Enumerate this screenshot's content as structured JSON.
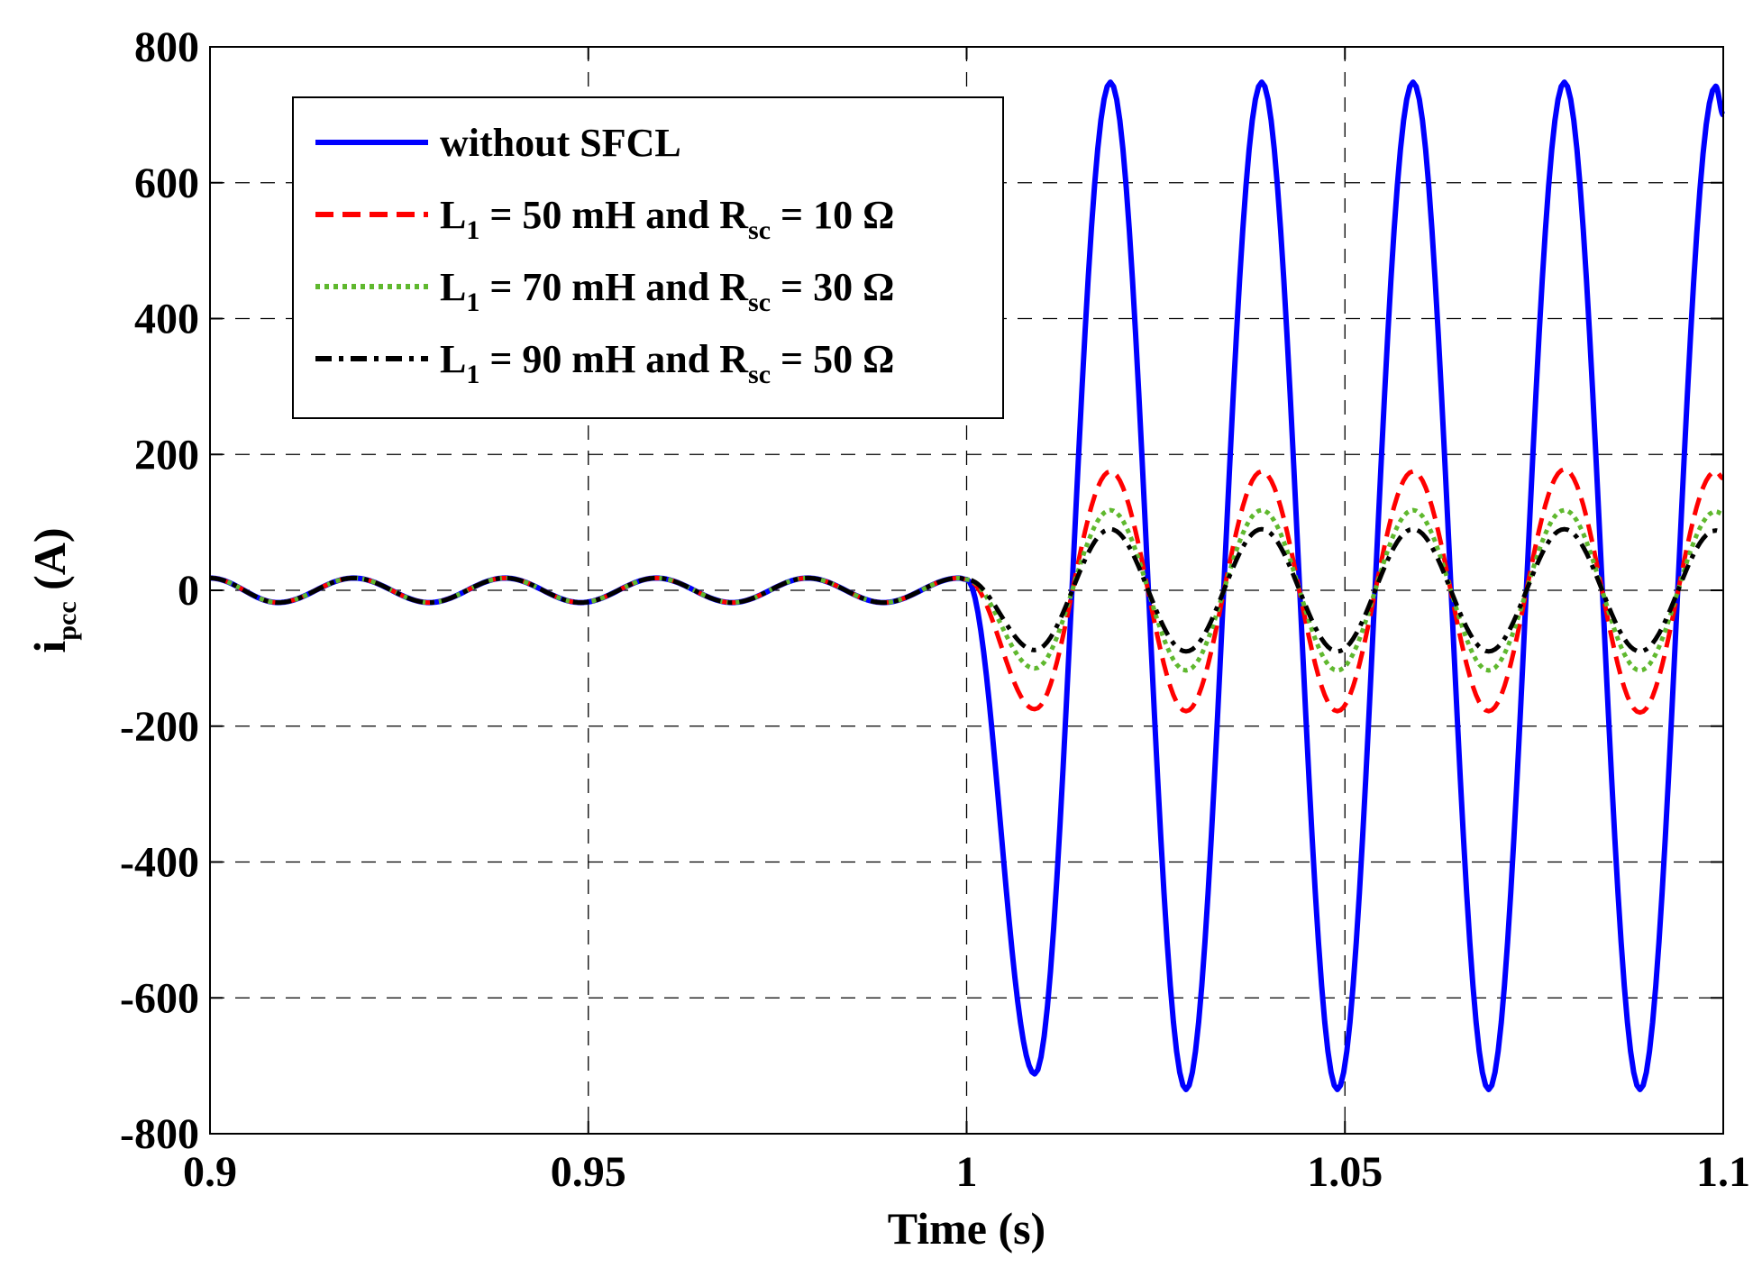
{
  "chart_data": {
    "type": "line",
    "title": "",
    "xlabel": "Time (s)",
    "ylabel": {
      "main": "i",
      "sub": "pcc",
      "unit": " (A)"
    },
    "xlim": [
      0.9,
      1.1
    ],
    "ylim": [
      -800,
      800
    ],
    "xticks": [
      0.9,
      0.95,
      1.0,
      1.05,
      1.1
    ],
    "xtick_labels": [
      "0.9",
      "0.95",
      "1",
      "1.05",
      "1.1"
    ],
    "yticks": [
      -800,
      -600,
      -400,
      -200,
      0,
      200,
      400,
      600,
      800
    ],
    "ytick_labels": [
      "-800",
      "-600",
      "-400",
      "-200",
      "0",
      "200",
      "400",
      "600",
      "800"
    ],
    "grid": true,
    "legend_position": "top-left",
    "series": [
      {
        "name": "without SFCL",
        "label_parts": [
          {
            "t": "without SFCL"
          }
        ],
        "color": "#0000ff",
        "style": "solid",
        "x": [
          0.9,
          0.909,
          0.919,
          0.929,
          0.939,
          0.949,
          0.959,
          0.969,
          0.979,
          0.989,
          0.999,
          1.0,
          1.009,
          1.019,
          1.029,
          1.039,
          1.049,
          1.059,
          1.069,
          1.079,
          1.089,
          1.099,
          1.1
        ],
        "y": [
          18,
          -18,
          18,
          -18,
          18,
          -18,
          18,
          -18,
          18,
          -18,
          18,
          16,
          -712,
          748,
          -735,
          748,
          -735,
          748,
          -735,
          748,
          -735,
          742,
          700
        ]
      },
      {
        "name": "L1 = 50 mH and Rsc = 10 Ω",
        "label_parts": [
          {
            "t": "L"
          },
          {
            "t": "1",
            "sub": true
          },
          {
            "t": " = 50 mH and R"
          },
          {
            "t": "sc",
            "sub": true
          },
          {
            "t": " = 10 Ω"
          }
        ],
        "color": "#ff0000",
        "style": "dashed",
        "x": [
          0.9,
          0.909,
          0.919,
          0.929,
          0.939,
          0.949,
          0.959,
          0.969,
          0.979,
          0.989,
          0.999,
          1.0,
          1.009,
          1.019,
          1.029,
          1.039,
          1.049,
          1.059,
          1.069,
          1.079,
          1.089,
          1.099,
          1.1
        ],
        "y": [
          18,
          -18,
          18,
          -18,
          18,
          -18,
          18,
          -18,
          18,
          -18,
          18,
          16,
          -175,
          175,
          -178,
          175,
          -178,
          175,
          -178,
          178,
          -180,
          175,
          165
        ]
      },
      {
        "name": "L1 = 70 mH and Rsc = 30 Ω",
        "label_parts": [
          {
            "t": "L"
          },
          {
            "t": "1",
            "sub": true
          },
          {
            "t": " = 70 mH and R"
          },
          {
            "t": "sc",
            "sub": true
          },
          {
            "t": " = 30 Ω"
          }
        ],
        "color": "#5fb82e",
        "style": "dotted",
        "x": [
          0.9,
          0.909,
          0.919,
          0.929,
          0.939,
          0.949,
          0.959,
          0.969,
          0.979,
          0.989,
          0.999,
          1.0,
          1.009,
          1.019,
          1.029,
          1.039,
          1.049,
          1.059,
          1.069,
          1.079,
          1.089,
          1.099,
          1.1
        ],
        "y": [
          18,
          -18,
          18,
          -18,
          18,
          -18,
          18,
          -18,
          18,
          -18,
          18,
          16,
          -115,
          118,
          -118,
          118,
          -118,
          118,
          -118,
          118,
          -118,
          116,
          112
        ]
      },
      {
        "name": "L1 = 90 mH and Rsc = 50 Ω",
        "label_parts": [
          {
            "t": "L"
          },
          {
            "t": "1",
            "sub": true
          },
          {
            "t": " = 90 mH and R"
          },
          {
            "t": "sc",
            "sub": true
          },
          {
            "t": " = 50 Ω"
          }
        ],
        "color": "#000000",
        "style": "dashdot",
        "x": [
          0.9,
          0.909,
          0.919,
          0.929,
          0.939,
          0.949,
          0.959,
          0.969,
          0.979,
          0.989,
          0.999,
          1.0,
          1.009,
          1.019,
          1.029,
          1.039,
          1.049,
          1.059,
          1.069,
          1.079,
          1.089,
          1.099,
          1.1
        ],
        "y": [
          18,
          -18,
          18,
          -18,
          18,
          -18,
          18,
          -18,
          18,
          -18,
          18,
          16,
          -88,
          90,
          -90,
          90,
          -90,
          90,
          -90,
          90,
          -90,
          88,
          85
        ]
      }
    ]
  }
}
